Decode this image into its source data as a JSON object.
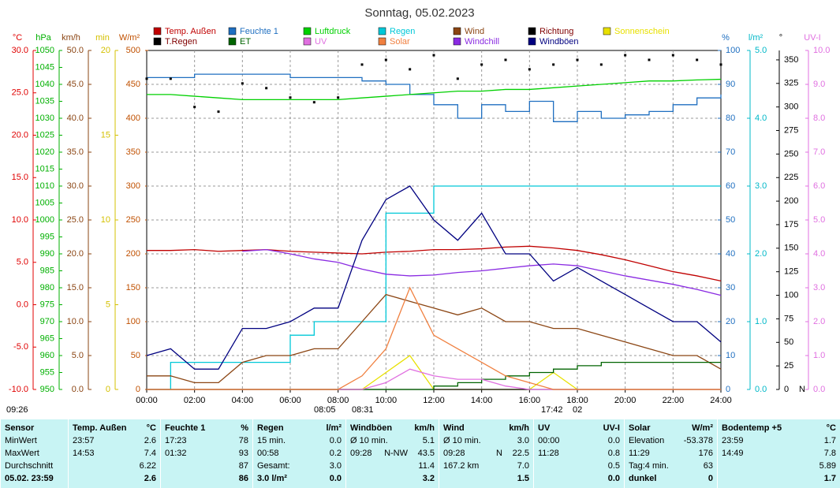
{
  "chart_data": {
    "type": "line",
    "title": "Sonntag, 05.02.2023",
    "xlim": [
      0,
      24
    ],
    "xticks": [
      {
        "value": 0,
        "label": "00:00"
      },
      {
        "value": 2,
        "label": "02:00"
      },
      {
        "value": 4,
        "label": "04:00"
      },
      {
        "value": 6,
        "label": "06:00"
      },
      {
        "value": 8,
        "label": "08:00"
      },
      {
        "value": 10,
        "label": "10:00"
      },
      {
        "value": 12,
        "label": "12:00"
      },
      {
        "value": 14,
        "label": "14:00"
      },
      {
        "value": 16,
        "label": "16:00"
      },
      {
        "value": 18,
        "label": "18:00"
      },
      {
        "value": 20,
        "label": "20:00"
      },
      {
        "value": 22,
        "label": "22:00"
      },
      {
        "value": 24,
        "label": "24:00"
      }
    ],
    "grid": true,
    "x": [
      0,
      1,
      2,
      3,
      4,
      5,
      6,
      7,
      8,
      9,
      10,
      11,
      12,
      13,
      14,
      15,
      16,
      17,
      18,
      19,
      20,
      21,
      22,
      23,
      24
    ],
    "axes": [
      {
        "label": "°C",
        "color": "#e00000",
        "lim": [
          -10,
          30
        ],
        "ticks": [
          {
            "value": -10,
            "label": "-10.0"
          },
          {
            "value": -5,
            "label": "-5.0"
          },
          {
            "value": 0,
            "label": "0.0"
          },
          {
            "value": 5,
            "label": "5.0"
          },
          {
            "value": 10,
            "label": "10.0"
          },
          {
            "value": 15,
            "label": "15.0"
          },
          {
            "value": 20,
            "label": "20.0"
          },
          {
            "value": 25,
            "label": "25.0"
          },
          {
            "value": 30,
            "label": "30.0"
          }
        ]
      },
      {
        "label": "hPa",
        "color": "#00b000",
        "lim": [
          950,
          1050
        ],
        "ticks": [
          950,
          955,
          960,
          965,
          970,
          975,
          980,
          985,
          990,
          995,
          1000,
          1005,
          1010,
          1015,
          1020,
          1025,
          1030,
          1035,
          1040,
          1045,
          1050
        ]
      },
      {
        "label": "km/h",
        "color": "#8b4513",
        "lim": [
          0,
          50
        ],
        "ticks": [
          {
            "value": 0,
            "label": "0.0"
          },
          {
            "value": 5,
            "label": "5.0"
          },
          {
            "value": 10,
            "label": "10.0"
          },
          {
            "value": 15,
            "label": "15.0"
          },
          {
            "value": 20,
            "label": "20.0"
          },
          {
            "value": 25,
            "label": "25.0"
          },
          {
            "value": 30,
            "label": "30.0"
          },
          {
            "value": 35,
            "label": "35.0"
          },
          {
            "value": 40,
            "label": "40.0"
          },
          {
            "value": 45,
            "label": "45.0"
          },
          {
            "value": 50,
            "label": "50.0"
          }
        ]
      },
      {
        "label": "min",
        "color": "#d4c000",
        "lim": [
          0,
          20
        ],
        "ticks": [
          0,
          5,
          10,
          15,
          20
        ]
      },
      {
        "label": "W/m²",
        "color": "#c05000",
        "lim": [
          0,
          500
        ],
        "ticks": [
          0,
          50,
          100,
          150,
          200,
          250,
          300,
          350,
          400,
          450,
          500
        ]
      },
      {
        "label": "%",
        "color": "#1f6fc0",
        "lim": [
          0,
          100
        ],
        "ticks": [
          0,
          10,
          20,
          30,
          40,
          50,
          60,
          70,
          80,
          90,
          100
        ]
      },
      {
        "label": "l/m²",
        "color": "#00b8c8",
        "lim": [
          0,
          5
        ],
        "ticks": [
          {
            "value": 0,
            "label": "0.0"
          },
          {
            "value": 1,
            "label": "1.0"
          },
          {
            "value": 2,
            "label": "2.0"
          },
          {
            "value": 3,
            "label": "3.0"
          },
          {
            "value": 4,
            "label": "4.0"
          },
          {
            "value": 5,
            "label": "5.0"
          }
        ]
      },
      {
        "label": "°",
        "color": "#000000",
        "lim": [
          0,
          360
        ],
        "ticks": [
          0,
          25,
          50,
          75,
          100,
          125,
          150,
          175,
          200,
          225,
          250,
          275,
          300,
          325,
          350
        ]
      },
      {
        "label": "UV-I",
        "color": "#e070e0",
        "lim": [
          0,
          10
        ],
        "ticks": [
          {
            "value": 0,
            "label": "0.0"
          },
          {
            "value": 1,
            "label": "1.0"
          },
          {
            "value": 2,
            "label": "2.0"
          },
          {
            "value": 3,
            "label": "3.0"
          },
          {
            "value": 4,
            "label": "4.0"
          },
          {
            "value": 5,
            "label": "5.0"
          },
          {
            "value": 6,
            "label": "6.0"
          },
          {
            "value": 7,
            "label": "7.0"
          },
          {
            "value": 8,
            "label": "8.0"
          },
          {
            "value": 9,
            "label": "9.0"
          },
          {
            "value": 10,
            "label": "10.0"
          }
        ]
      }
    ],
    "series": [
      {
        "name": "Temp. Außen",
        "color": "#c00000",
        "axis": "°C",
        "type": "line",
        "values": [
          6.4,
          6.4,
          6.5,
          6.3,
          6.4,
          6.5,
          6.3,
          6.2,
          6.1,
          6.0,
          6.2,
          6.3,
          6.5,
          6.5,
          6.6,
          6.8,
          6.9,
          6.7,
          6.4,
          5.9,
          5.3,
          4.6,
          3.9,
          3.4,
          2.8
        ]
      },
      {
        "name": "Feuchte 1",
        "color": "#1f6fc0",
        "axis": "%",
        "type": "step",
        "values": [
          92,
          92,
          93,
          93,
          93,
          93,
          92,
          92,
          92,
          91,
          90,
          87,
          84,
          80,
          84,
          82,
          85,
          79,
          82,
          80,
          81,
          82,
          84,
          86,
          87
        ]
      },
      {
        "name": "Luftdruck",
        "color": "#00d000",
        "axis": "hPa",
        "type": "line",
        "values": [
          1037,
          1037,
          1036.5,
          1036,
          1035.5,
          1035.5,
          1035.5,
          1035.5,
          1035.5,
          1036,
          1036.5,
          1037,
          1037.5,
          1038,
          1038,
          1038.5,
          1038.5,
          1039,
          1039.5,
          1040,
          1040.5,
          1041,
          1041,
          1041.3,
          1041.5
        ]
      },
      {
        "name": "Regen",
        "color": "#00c8d8",
        "axis": "l/m²",
        "type": "step",
        "values": [
          0,
          0.4,
          0.4,
          0.4,
          0.4,
          0.4,
          0.8,
          1.0,
          1.0,
          1.0,
          2.6,
          2.6,
          3.0,
          3.0,
          3.0,
          3.0,
          3.0,
          3.0,
          3.0,
          3.0,
          3.0,
          3.0,
          3.0,
          3.0,
          3.0
        ]
      },
      {
        "name": "Wind",
        "color": "#8b4513",
        "axis": "km/h",
        "type": "line",
        "values": [
          2,
          2,
          1,
          1,
          4,
          5,
          5,
          6,
          6,
          10,
          14,
          13,
          12,
          11,
          12,
          10,
          10,
          9,
          9,
          8,
          7,
          6,
          5,
          5,
          3
        ]
      },
      {
        "name": "Richtung",
        "color": "#000000",
        "axis": "°",
        "type": "scatter",
        "values": [
          330,
          330,
          300,
          295,
          325,
          320,
          310,
          305,
          310,
          345,
          350,
          340,
          355,
          330,
          345,
          350,
          340,
          345,
          350,
          345,
          355,
          350,
          355,
          350,
          345
        ]
      },
      {
        "name": "Sonnenschein",
        "color": "#e8e000",
        "axis": "min",
        "type": "line",
        "values": [
          0,
          0,
          0,
          0,
          0,
          0,
          0,
          0,
          0,
          0,
          1,
          2,
          0,
          0,
          0,
          0,
          0,
          1,
          0,
          0,
          0,
          0,
          0,
          0,
          0
        ]
      },
      {
        "name": "T.Regen",
        "color": "#000000",
        "axis": "l/m²",
        "type": "line",
        "values": [
          0,
          0,
          0,
          0,
          0,
          0,
          0,
          0,
          0,
          0,
          0,
          0,
          0,
          0,
          0,
          0,
          0,
          0,
          0,
          0,
          0,
          0,
          0,
          0,
          0
        ]
      },
      {
        "name": "ET",
        "color": "#006400",
        "axis": "l/m²",
        "type": "step",
        "values": [
          0,
          0,
          0,
          0,
          0,
          0,
          0,
          0,
          0,
          0,
          0,
          0,
          0.05,
          0.1,
          0.15,
          0.2,
          0.25,
          0.3,
          0.35,
          0.4,
          0.4,
          0.4,
          0.4,
          0.4,
          0.4
        ]
      },
      {
        "name": "UV",
        "color": "#e070e0",
        "axis": "UV-I",
        "type": "line",
        "values": [
          0,
          0,
          0,
          0,
          0,
          0,
          0,
          0,
          0,
          0,
          0.2,
          0.6,
          0.4,
          0.3,
          0.3,
          0.1,
          0,
          0,
          0,
          0,
          0,
          0,
          0,
          0,
          0
        ]
      },
      {
        "name": "Solar",
        "color": "#f08040",
        "axis": "W/m²",
        "type": "line",
        "values": [
          0,
          0,
          0,
          0,
          0,
          0,
          0,
          0,
          0,
          20,
          60,
          150,
          80,
          60,
          40,
          20,
          10,
          0,
          0,
          0,
          0,
          0,
          0,
          0,
          0
        ]
      },
      {
        "name": "Windchill",
        "color": "#8a2be2",
        "axis": "°C",
        "type": "line",
        "values": [
          null,
          null,
          null,
          null,
          6.3,
          6.5,
          6.0,
          5.4,
          5.0,
          4.2,
          3.6,
          3.4,
          3.5,
          3.8,
          4.0,
          4.3,
          4.6,
          4.8,
          4.6,
          4.0,
          3.4,
          2.9,
          2.4,
          1.8,
          1.1
        ]
      },
      {
        "name": "Windböen",
        "color": "#000080",
        "axis": "km/h",
        "type": "line",
        "values": [
          5,
          6,
          3,
          3,
          9,
          9,
          10,
          12,
          12,
          22,
          28,
          30,
          25,
          22,
          26,
          20,
          20,
          16,
          18,
          16,
          14,
          12,
          10,
          10,
          7
        ]
      }
    ],
    "annotations": [
      "09:26",
      "08:05",
      "08:31",
      "17:42",
      "02",
      "N"
    ]
  },
  "table": {
    "columns": [
      {
        "header": [
          "Sensor"
        ],
        "rows": [
          [
            "MinWert"
          ],
          [
            "MaxWert"
          ],
          [
            "Durchschnitt"
          ],
          [
            "05.02. 23:59"
          ]
        ]
      },
      {
        "header": [
          "Temp. Außen",
          "°C"
        ],
        "rows": [
          [
            "23:57",
            "2.6"
          ],
          [
            "14:53",
            "7.4"
          ],
          [
            "6.22"
          ],
          [
            "2.6"
          ]
        ]
      },
      {
        "header": [
          "Feuchte 1",
          "%"
        ],
        "rows": [
          [
            "17:23",
            "78"
          ],
          [
            "01:32",
            "93"
          ],
          [
            "87"
          ],
          [
            "86"
          ]
        ]
      },
      {
        "header": [
          "Regen",
          "l/m²"
        ],
        "rows": [
          [
            "15 min.",
            "0.0"
          ],
          [
            "00:58",
            "0.2"
          ],
          [
            "Gesamt:",
            "3.0"
          ],
          [
            "3.0 l/m²",
            "0.0"
          ]
        ]
      },
      {
        "header": [
          "Windböen",
          "km/h"
        ],
        "rows": [
          [
            "Ø 10 min.",
            "5.1"
          ],
          [
            "09:28",
            "N-NW",
            "43.5"
          ],
          [
            "11.4"
          ],
          [
            "3.2"
          ]
        ]
      },
      {
        "header": [
          "Wind",
          "km/h"
        ],
        "rows": [
          [
            "Ø 10 min.",
            "3.0"
          ],
          [
            "09:28",
            "N",
            "22.5"
          ],
          [
            "167.2 km",
            "7.0"
          ],
          [
            "1.5"
          ]
        ]
      },
      {
        "header": [
          "UV",
          "UV-I"
        ],
        "rows": [
          [
            "00:00",
            "0.0"
          ],
          [
            "11:28",
            "0.8"
          ],
          [
            "0.5"
          ],
          [
            "0.0"
          ]
        ]
      },
      {
        "header": [
          "Solar",
          "W/m²"
        ],
        "rows": [
          [
            "Elevation",
            "-53.378"
          ],
          [
            "11:29",
            "176"
          ],
          [
            "Tag:4 min.",
            "63"
          ],
          [
            "dunkel",
            "0"
          ]
        ]
      },
      {
        "header": [
          "Bodentemp +5",
          "°C"
        ],
        "rows": [
          [
            "23:59",
            "1.7"
          ],
          [
            "14:49",
            "7.8"
          ],
          [
            "5.89"
          ],
          [
            "1.7"
          ]
        ]
      }
    ]
  }
}
